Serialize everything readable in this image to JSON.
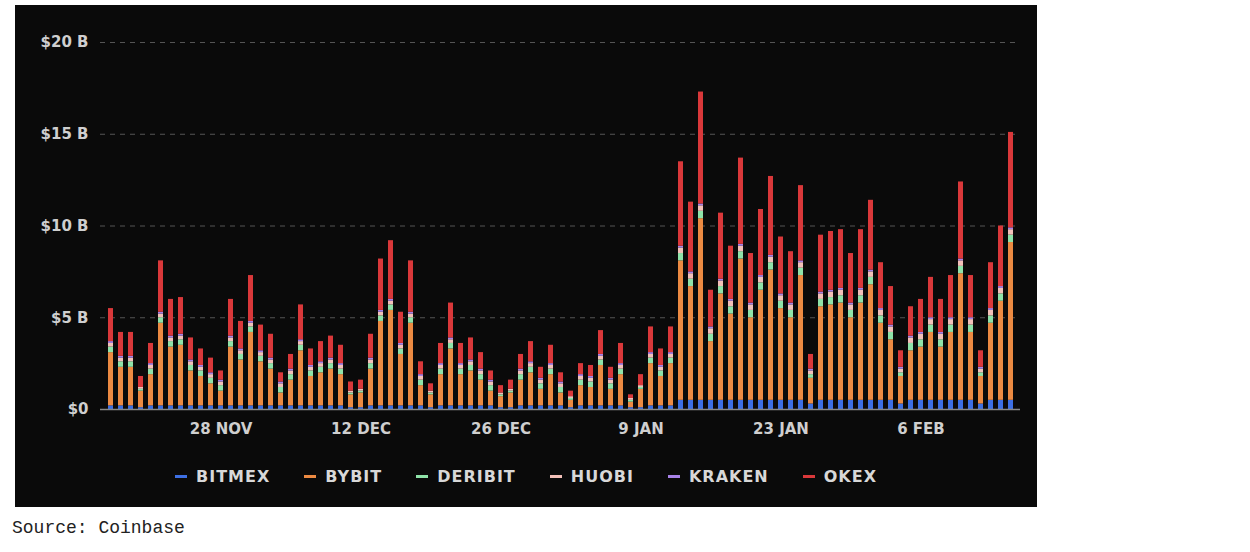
{
  "chart_data": {
    "type": "bar",
    "stacked": true,
    "grid": true,
    "legend": "bottom",
    "caption": "Source: Coinbase",
    "categories": [
      null,
      null,
      null,
      null,
      null,
      null,
      null,
      null,
      null,
      null,
      null,
      "28 NOV",
      null,
      null,
      null,
      null,
      null,
      null,
      null,
      null,
      null,
      null,
      null,
      null,
      null,
      "12 DEC",
      null,
      null,
      null,
      null,
      null,
      null,
      null,
      null,
      null,
      null,
      null,
      null,
      null,
      "26 DEC",
      null,
      null,
      null,
      null,
      null,
      null,
      null,
      null,
      null,
      null,
      null,
      null,
      null,
      "9 JAN",
      null,
      null,
      null,
      null,
      null,
      null,
      null,
      null,
      null,
      null,
      null,
      null,
      null,
      "23 JAN",
      null,
      null,
      null,
      null,
      null,
      null,
      null,
      null,
      null,
      null,
      null,
      null,
      null,
      "6 FEB",
      null,
      null,
      null,
      null,
      null,
      null,
      null,
      null,
      null
    ],
    "ylim": [
      0,
      20
    ],
    "yticks": [
      {
        "value": 0,
        "label": "$0"
      },
      {
        "value": 5,
        "label": "$5 B"
      },
      {
        "value": 10,
        "label": "$10 B"
      },
      {
        "value": 15,
        "label": "$15 B"
      },
      {
        "value": 20,
        "label": "$20 B"
      }
    ],
    "series": [
      {
        "name": "BITMEX",
        "color": "#3d6fe3",
        "values": [
          0.2,
          0.2,
          0.2,
          0.1,
          0.2,
          0.2,
          0.2,
          0.2,
          0.2,
          0.2,
          0.2,
          0.2,
          0.2,
          0.2,
          0.2,
          0.2,
          0.2,
          0.2,
          0.2,
          0.2,
          0.2,
          0.2,
          0.2,
          0.2,
          0.1,
          0.1,
          0.2,
          0.2,
          0.2,
          0.2,
          0.2,
          0.2,
          0.1,
          0.2,
          0.2,
          0.2,
          0.2,
          0.2,
          0.2,
          0.1,
          0.1,
          0.2,
          0.2,
          0.2,
          0.2,
          0.2,
          0.1,
          0.2,
          0.2,
          0.2,
          0.2,
          0.2,
          0.1,
          0.1,
          0.2,
          0.2,
          0.2,
          0.5,
          0.5,
          0.5,
          0.5,
          0.5,
          0.5,
          0.5,
          0.5,
          0.5,
          0.5,
          0.5,
          0.5,
          0.5,
          0.3,
          0.5,
          0.5,
          0.5,
          0.5,
          0.5,
          0.5,
          0.5,
          0.5,
          0.3,
          0.5,
          0.5,
          0.5,
          0.5,
          0.5,
          0.5,
          0.5,
          0.3,
          0.5,
          0.5,
          0.5
        ]
      },
      {
        "name": "BYBIT",
        "color": "#ec8a42",
        "values": [
          2.9,
          2.1,
          2.1,
          0.9,
          1.7,
          4.5,
          3.2,
          3.3,
          1.9,
          1.6,
          1.2,
          0.8,
          3.2,
          2.5,
          4.0,
          2.4,
          2.0,
          0.7,
          1.4,
          3.0,
          1.6,
          1.8,
          2.0,
          1.7,
          0.7,
          0.8,
          2.0,
          4.6,
          5.2,
          2.8,
          4.5,
          1.1,
          0.7,
          1.7,
          3.1,
          1.7,
          1.9,
          1.4,
          0.8,
          0.6,
          0.8,
          1.4,
          1.8,
          0.9,
          1.7,
          0.7,
          0.4,
          1.1,
          1.0,
          2.2,
          0.9,
          1.7,
          0.3,
          1.0,
          2.3,
          1.6,
          2.3,
          7.6,
          6.2,
          9.9,
          3.2,
          5.8,
          4.7,
          7.7,
          4.5,
          6.0,
          7.1,
          5.0,
          4.5,
          6.8,
          1.4,
          5.1,
          5.2,
          5.3,
          4.5,
          5.3,
          6.3,
          4.2,
          3.3,
          1.5,
          2.7,
          2.9,
          3.7,
          2.9,
          3.7,
          6.9,
          3.7,
          1.5,
          4.2,
          5.4,
          8.6
        ]
      },
      {
        "name": "DERIBIT",
        "color": "#8fe3a9",
        "values": [
          0.3,
          0.3,
          0.3,
          0.1,
          0.3,
          0.3,
          0.3,
          0.3,
          0.3,
          0.3,
          0.3,
          0.3,
          0.3,
          0.3,
          0.3,
          0.3,
          0.3,
          0.3,
          0.3,
          0.3,
          0.3,
          0.3,
          0.3,
          0.3,
          0.1,
          0.1,
          0.3,
          0.3,
          0.3,
          0.3,
          0.3,
          0.3,
          0.1,
          0.3,
          0.3,
          0.3,
          0.3,
          0.3,
          0.3,
          0.1,
          0.1,
          0.3,
          0.3,
          0.3,
          0.3,
          0.3,
          0.1,
          0.3,
          0.3,
          0.3,
          0.3,
          0.3,
          0.1,
          0.1,
          0.3,
          0.3,
          0.3,
          0.4,
          0.4,
          0.4,
          0.4,
          0.4,
          0.4,
          0.4,
          0.4,
          0.4,
          0.4,
          0.4,
          0.4,
          0.4,
          0.2,
          0.4,
          0.4,
          0.4,
          0.4,
          0.4,
          0.4,
          0.4,
          0.4,
          0.2,
          0.4,
          0.4,
          0.4,
          0.4,
          0.4,
          0.4,
          0.4,
          0.2,
          0.4,
          0.4,
          0.4
        ]
      },
      {
        "name": "HUOBI",
        "color": "#f3c0b8",
        "values": [
          0.2,
          0.2,
          0.2,
          0.1,
          0.2,
          0.2,
          0.2,
          0.2,
          0.2,
          0.2,
          0.2,
          0.2,
          0.2,
          0.2,
          0.2,
          0.2,
          0.2,
          0.2,
          0.2,
          0.2,
          0.2,
          0.2,
          0.2,
          0.2,
          0.1,
          0.1,
          0.2,
          0.2,
          0.2,
          0.2,
          0.2,
          0.2,
          0.1,
          0.2,
          0.2,
          0.2,
          0.2,
          0.2,
          0.2,
          0.1,
          0.1,
          0.2,
          0.2,
          0.2,
          0.2,
          0.2,
          0.1,
          0.2,
          0.2,
          0.2,
          0.2,
          0.2,
          0.1,
          0.1,
          0.2,
          0.2,
          0.2,
          0.3,
          0.3,
          0.3,
          0.3,
          0.3,
          0.3,
          0.3,
          0.3,
          0.3,
          0.3,
          0.3,
          0.3,
          0.3,
          0.2,
          0.3,
          0.3,
          0.3,
          0.3,
          0.3,
          0.3,
          0.3,
          0.3,
          0.2,
          0.3,
          0.3,
          0.3,
          0.3,
          0.3,
          0.3,
          0.3,
          0.2,
          0.3,
          0.3,
          0.3
        ]
      },
      {
        "name": "KRAKEN",
        "color": "#a882e8",
        "values": [
          0.1,
          0.1,
          0.1,
          0.0,
          0.1,
          0.1,
          0.1,
          0.1,
          0.1,
          0.1,
          0.1,
          0.1,
          0.1,
          0.1,
          0.1,
          0.1,
          0.1,
          0.1,
          0.1,
          0.1,
          0.1,
          0.1,
          0.1,
          0.1,
          0.0,
          0.0,
          0.1,
          0.1,
          0.1,
          0.1,
          0.1,
          0.1,
          0.0,
          0.1,
          0.1,
          0.1,
          0.1,
          0.1,
          0.1,
          0.0,
          0.0,
          0.1,
          0.1,
          0.1,
          0.1,
          0.1,
          0.0,
          0.1,
          0.1,
          0.1,
          0.1,
          0.1,
          0.0,
          0.0,
          0.1,
          0.1,
          0.1,
          0.1,
          0.1,
          0.1,
          0.1,
          0.1,
          0.1,
          0.1,
          0.1,
          0.1,
          0.1,
          0.1,
          0.1,
          0.1,
          0.1,
          0.1,
          0.1,
          0.1,
          0.1,
          0.1,
          0.1,
          0.1,
          0.1,
          0.1,
          0.1,
          0.1,
          0.1,
          0.1,
          0.1,
          0.1,
          0.1,
          0.1,
          0.1,
          0.1,
          0.1
        ]
      },
      {
        "name": "OKEX",
        "color": "#d9383a",
        "values": [
          1.8,
          1.3,
          1.3,
          0.6,
          1.1,
          2.8,
          2.0,
          2.0,
          1.2,
          0.9,
          0.8,
          0.5,
          2.0,
          1.5,
          2.5,
          1.4,
          1.3,
          0.5,
          0.8,
          1.9,
          0.9,
          1.1,
          1.2,
          1.0,
          0.5,
          0.5,
          1.3,
          2.8,
          3.2,
          1.7,
          2.8,
          0.7,
          0.4,
          1.1,
          1.9,
          1.1,
          1.2,
          0.9,
          0.5,
          0.4,
          0.5,
          0.8,
          1.1,
          0.6,
          1.0,
          0.5,
          0.3,
          0.6,
          0.6,
          1.3,
          0.6,
          1.1,
          0.2,
          0.6,
          1.4,
          0.9,
          1.4,
          4.6,
          3.8,
          6.1,
          2.0,
          3.6,
          2.9,
          4.7,
          2.7,
          3.6,
          4.3,
          3.1,
          2.8,
          4.1,
          0.8,
          3.1,
          3.2,
          3.2,
          2.7,
          3.2,
          3.8,
          2.5,
          2.1,
          0.9,
          1.6,
          1.8,
          2.2,
          1.8,
          2.3,
          4.2,
          2.3,
          0.9,
          2.5,
          3.3,
          5.2
        ]
      }
    ]
  }
}
